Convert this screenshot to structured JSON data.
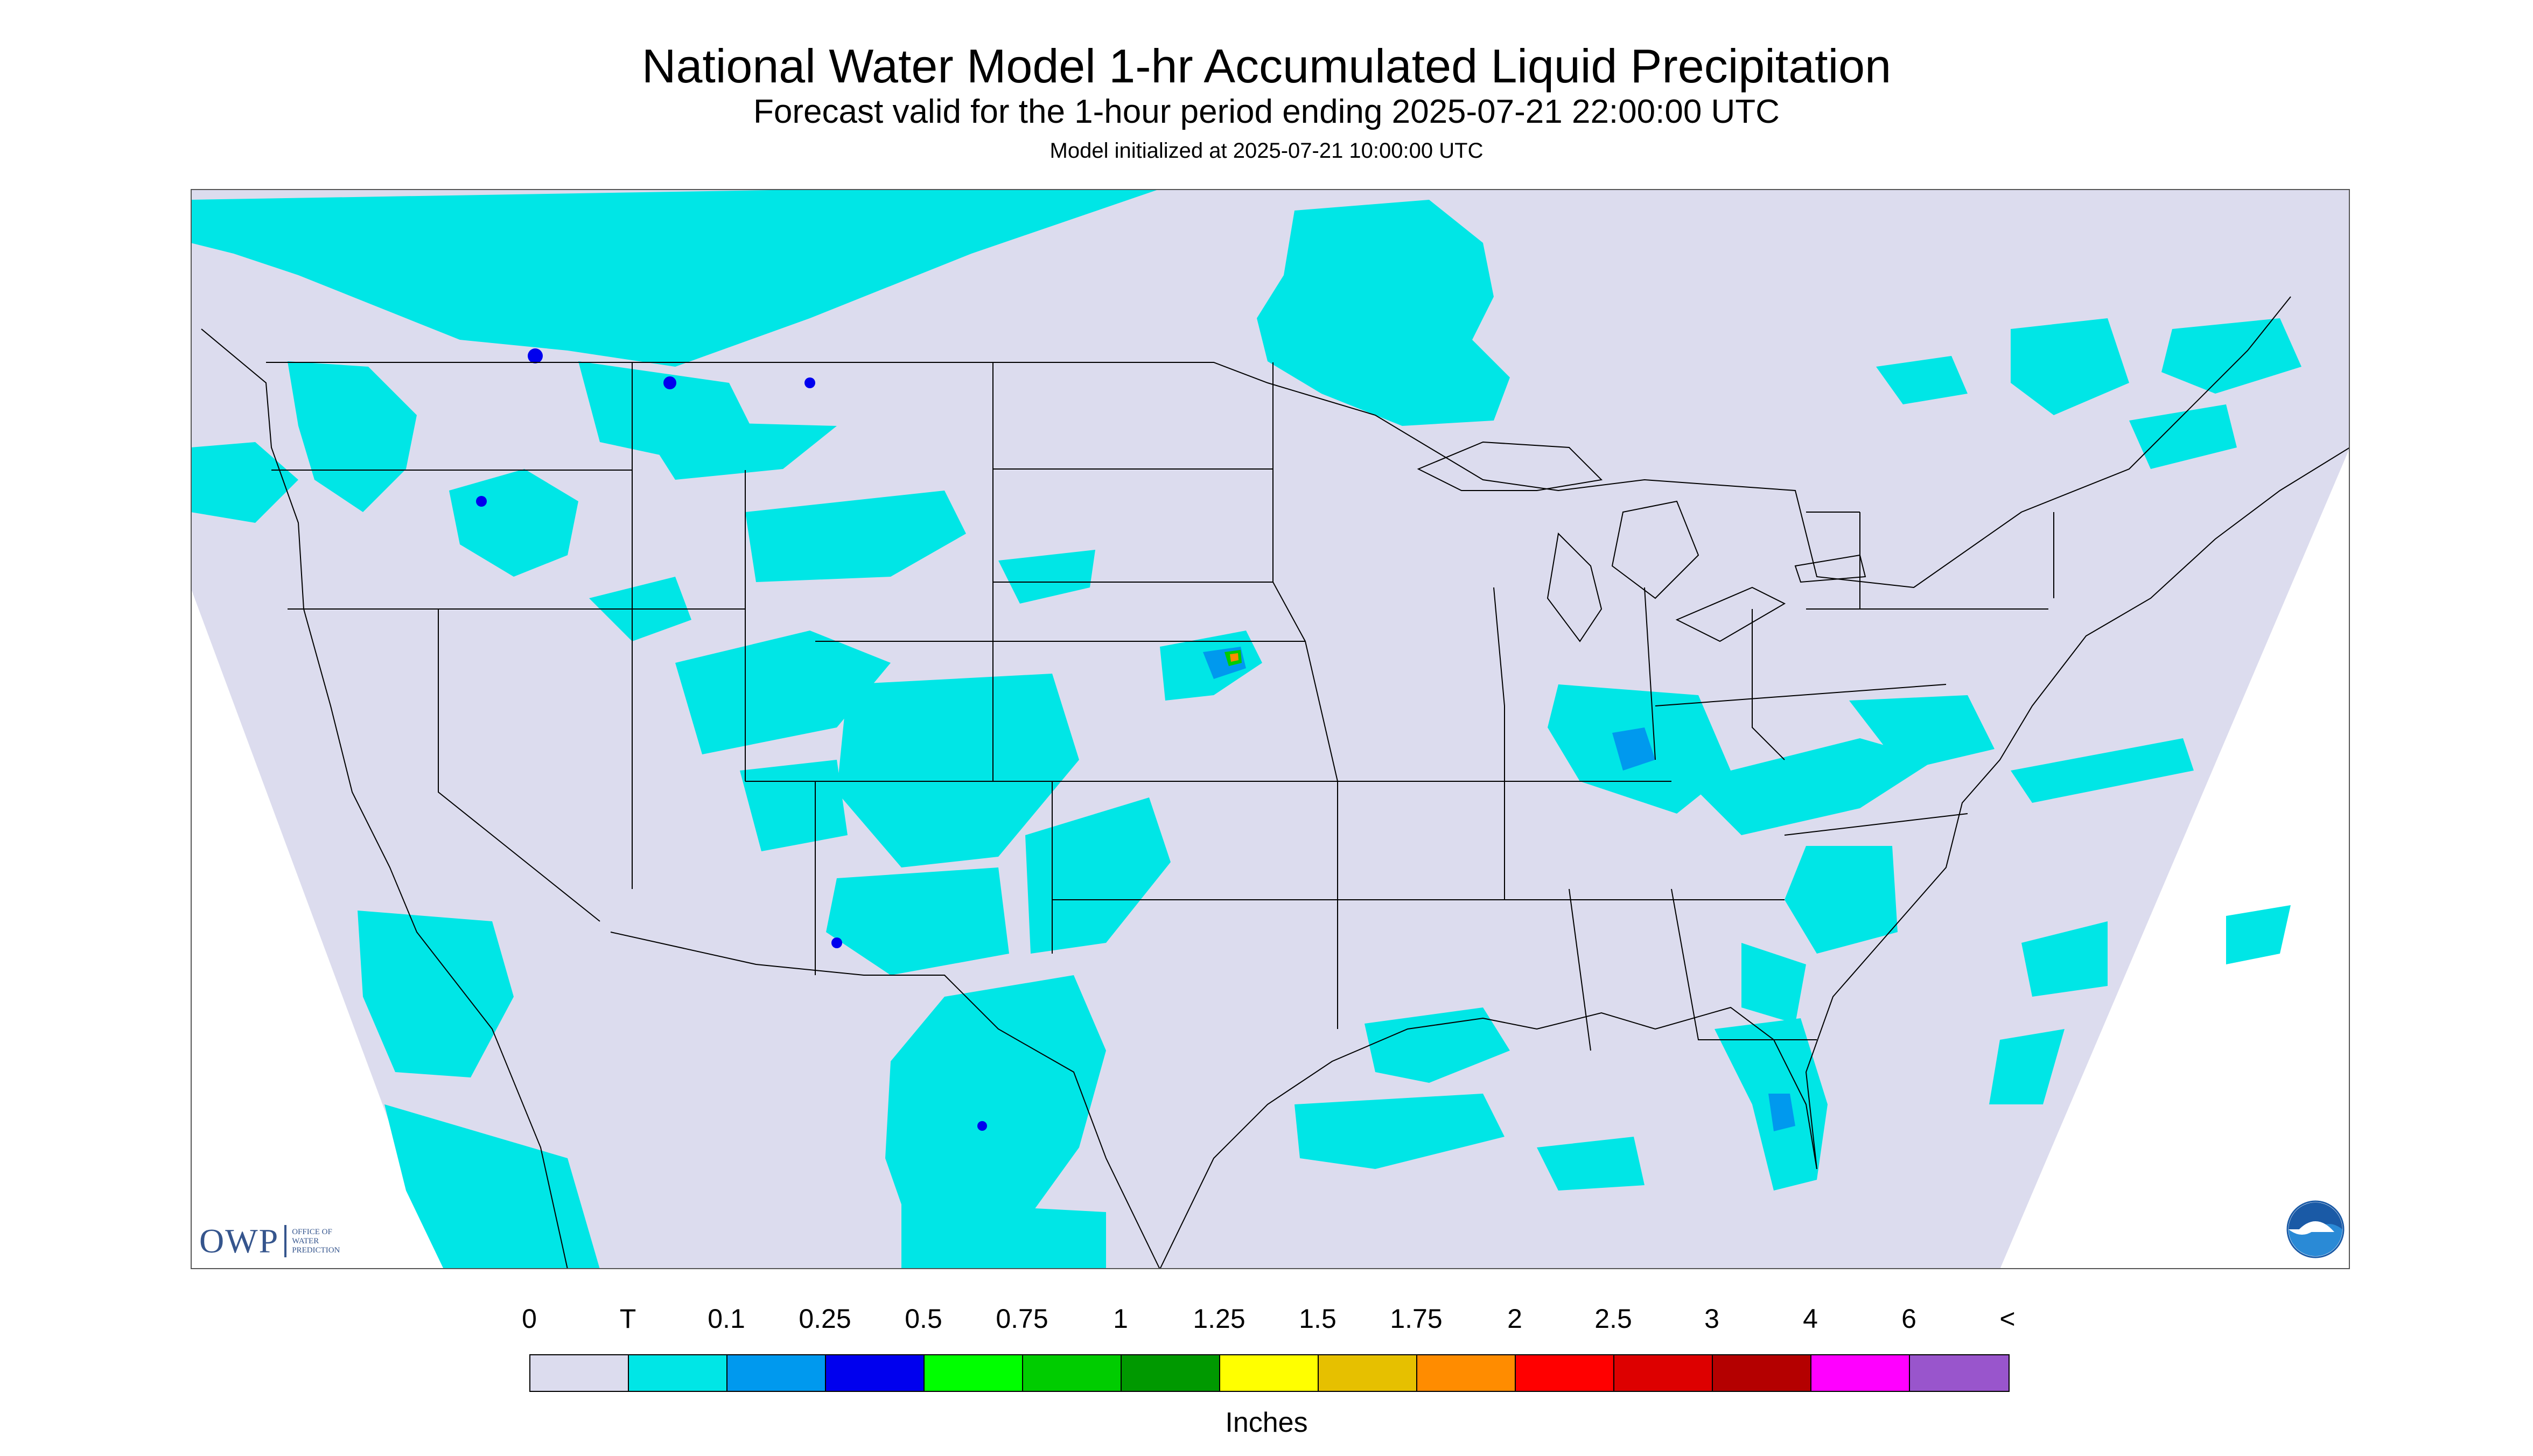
{
  "header": {
    "title": "National Water Model 1-hr Accumulated Liquid Precipitation",
    "subtitle": "Forecast valid for the 1-hour period ending 2025-07-21 22:00:00 UTC",
    "init": "Model initialized at 2025-07-21 10:00:00 UTC"
  },
  "logos": {
    "owp_big": "OWP",
    "owp_line1": "Office of",
    "owp_line2": "Water",
    "owp_line3": "Prediction",
    "noaa": "NOAA"
  },
  "legend": {
    "labels": [
      "0",
      "T",
      "0.1",
      "0.25",
      "0.5",
      "0.75",
      "1",
      "1.25",
      "1.5",
      "1.75",
      "2",
      "2.5",
      "3",
      "4",
      "6",
      "<"
    ],
    "colors": [
      "#dcdcee",
      "#00e6e6",
      "#0099ee",
      "#0000ee",
      "#00ff00",
      "#00cc00",
      "#009900",
      "#ffff00",
      "#e6c000",
      "#ff8c00",
      "#ff0000",
      "#dd0000",
      "#b40000",
      "#ff00ff",
      "#9955cc"
    ],
    "units": "Inches"
  },
  "map": {
    "background": "#dcdcee",
    "outside": "#ffffff",
    "light_precip": "#00e6e6",
    "medium_precip": "#0099ee",
    "heavy_precip": "#0000ee"
  }
}
